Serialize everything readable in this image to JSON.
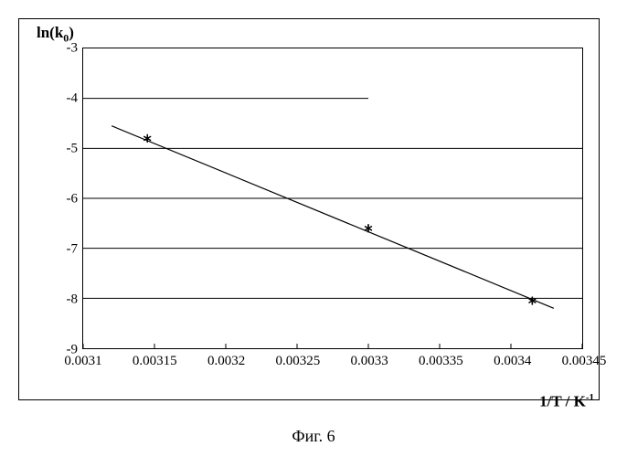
{
  "caption": "Фиг. 6",
  "chart": {
    "type": "scatter-line",
    "ylabel_html": "ln(k<sub>0</sub>)",
    "xlabel_html": "1/T / K<sup>-1</sup>",
    "xlim": [
      0.0031,
      0.00345
    ],
    "ylim": [
      -9,
      -3
    ],
    "xticks": [
      0.0031,
      0.00315,
      0.0032,
      0.00325,
      0.0033,
      0.00335,
      0.0034,
      0.00345
    ],
    "xtick_labels": [
      "0.0031",
      "0.00315",
      "0.0032",
      "0.00325",
      "0.0033",
      "0.00335",
      "0.0034",
      "0.00345"
    ],
    "yticks": [
      -9,
      -8,
      -7,
      -6,
      -5,
      -4,
      -3
    ],
    "ytick_labels": [
      "-9",
      "-8",
      "-7",
      "-6",
      "-5",
      "-4",
      "-3"
    ],
    "grid": {
      "horizontal": true,
      "vertical": false,
      "color": "#000000",
      "width": 1
    },
    "series": [
      {
        "name": "data-points",
        "marker": "asterisk",
        "marker_size": 9,
        "marker_color": "#000000",
        "points": [
          {
            "x": 0.003145,
            "y": -4.8
          },
          {
            "x": 0.0033,
            "y": -6.6
          },
          {
            "x": 0.003415,
            "y": -8.05
          }
        ]
      },
      {
        "name": "fit-line",
        "type": "line",
        "color": "#000000",
        "width": 1.2,
        "points": [
          {
            "x": 0.00312,
            "y": -4.55
          },
          {
            "x": 0.00343,
            "y": -8.2
          }
        ]
      }
    ],
    "background_color": "#ffffff",
    "axis_color": "#000000",
    "tick_fontsize": 15,
    "label_fontsize": 17,
    "extra_half_grid": {
      "y": -4,
      "x_from": 0.0031,
      "x_to": 0.0033
    }
  }
}
